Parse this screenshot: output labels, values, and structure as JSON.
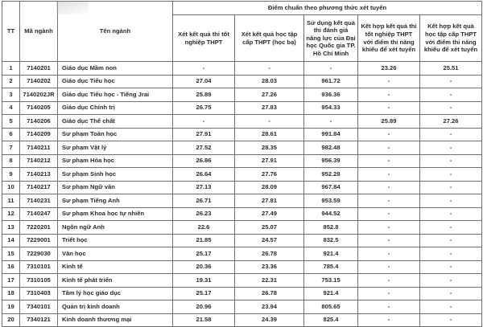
{
  "header": {
    "tt": "TT",
    "code": "Mã ngành",
    "name": "Tên ngành",
    "group": "Điểm chuẩn theo phương thức xét tuyển",
    "methods": [
      "Xét kết quả thi tốt nghiệp THPT",
      "Xét kết quả học tập cấp THPT (học bạ)",
      "Sử dụng kết quả thi đánh giá năng lực của Đại học Quốc gia TP. Hồ Chí Minh",
      "Kết hợp kết quả thi tốt nghiệp THPT với điểm thi năng khiếu để xét tuyển",
      "Kết hợp kết quả học tập cấp THPT với điểm thi năng khiếu để xét tuyển"
    ]
  },
  "rows": [
    {
      "tt": "1",
      "code": "7140201",
      "name": "Giáo dục Mầm non",
      "v": [
        "-",
        "-",
        "-",
        "23.26",
        "25.51"
      ]
    },
    {
      "tt": "2",
      "code": "7140202",
      "name": "Giáo dục Tiểu học",
      "v": [
        "27.04",
        "28.03",
        "961.72",
        "-",
        "-"
      ]
    },
    {
      "tt": "3",
      "code": "7140202JR",
      "name": "Giáo dục Tiểu học - Tiếng Jrai",
      "v": [
        "25.89",
        "27.26",
        "936.36",
        "-",
        "-"
      ]
    },
    {
      "tt": "4",
      "code": "7140205",
      "name": "Giáo dục Chính trị",
      "v": [
        "26.75",
        "27.83",
        "954.33",
        "-",
        "-"
      ]
    },
    {
      "tt": "5",
      "code": "7140206",
      "name": "Giáo dục Thể chất",
      "v": [
        "-",
        "-",
        "-",
        "25.89",
        "27.26"
      ]
    },
    {
      "tt": "6",
      "code": "7140209",
      "name": "Sư phạm Toán học",
      "v": [
        "27.91",
        "28.61",
        "991.84",
        "-",
        "-"
      ]
    },
    {
      "tt": "7",
      "code": "7140211",
      "name": "Sư phạm Vật lý",
      "v": [
        "27.52",
        "28.35",
        "982.48",
        "-",
        "-"
      ]
    },
    {
      "tt": "8",
      "code": "7140212",
      "name": "Sư phạm Hóa học",
      "v": [
        "26.86",
        "27.91",
        "956.39",
        "-",
        "-"
      ]
    },
    {
      "tt": "9",
      "code": "7140213",
      "name": "Sư phạm Sinh học",
      "v": [
        "26.64",
        "27.76",
        "952.28",
        "-",
        "-"
      ]
    },
    {
      "tt": "10",
      "code": "7140217",
      "name": "Sư phạm Ngữ văn",
      "v": [
        "27.13",
        "28.09",
        "967.84",
        "-",
        "-"
      ]
    },
    {
      "tt": "11",
      "code": "7140231",
      "name": "Sư phạm Tiếng Anh",
      "v": [
        "26.71",
        "27.81",
        "953.59",
        "-",
        "-"
      ]
    },
    {
      "tt": "12",
      "code": "7140247",
      "name": "Sư phạm Khoa học tự nhiên",
      "v": [
        "26.23",
        "27.49",
        "944.52",
        "-",
        "-"
      ]
    },
    {
      "tt": "13",
      "code": "7220201",
      "name": "Ngôn ngữ Anh",
      "v": [
        "22.6",
        "25.07",
        "852.8",
        "-",
        "-"
      ]
    },
    {
      "tt": "14",
      "code": "7229001",
      "name": "Triết học",
      "v": [
        "21.85",
        "24.57",
        "832.5",
        "-",
        "-"
      ]
    },
    {
      "tt": "15",
      "code": "7229030",
      "name": "Văn học",
      "v": [
        "25.17",
        "26.78",
        "921.4",
        "-",
        "-"
      ]
    },
    {
      "tt": "16",
      "code": "7310101",
      "name": "Kinh tế",
      "v": [
        "20.36",
        "23.36",
        "785.4",
        "-",
        "-"
      ]
    },
    {
      "tt": "17",
      "code": "7310105",
      "name": "Kinh tế phát triển",
      "v": [
        "19.31",
        "22.31",
        "753.15",
        "-",
        "-"
      ]
    },
    {
      "tt": "18",
      "code": "7310403",
      "name": "Tâm lý học giáo dục",
      "v": [
        "25.17",
        "26.78",
        "921.4",
        "-",
        "-"
      ]
    },
    {
      "tt": "19",
      "code": "7340101",
      "name": "Quản trị kinh doanh",
      "v": [
        "20.96",
        "23.94",
        "805.65",
        "-",
        "-"
      ]
    },
    {
      "tt": "20",
      "code": "7340121",
      "name": "Kinh doanh thương mại",
      "v": [
        "21.58",
        "24.39",
        "825.4",
        "-",
        "-"
      ]
    }
  ]
}
